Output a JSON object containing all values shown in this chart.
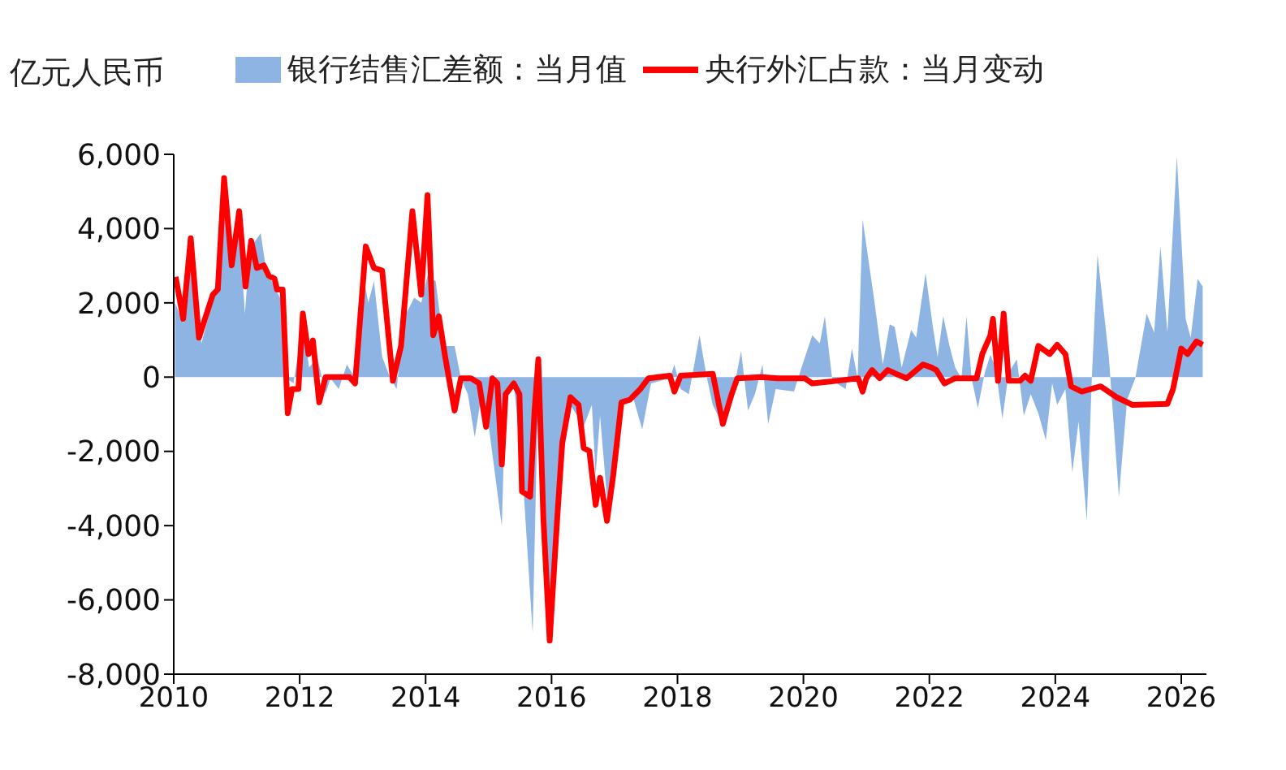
{
  "chart_data": {
    "type": "line",
    "ylabel": "亿元人民币",
    "legend": "top",
    "xlim": [
      2010,
      2026.4
    ],
    "xticks": [
      2010,
      2012,
      2014,
      2016,
      2018,
      2020,
      2022,
      2024,
      2026
    ],
    "ylim": [
      -8000,
      6000
    ],
    "yticks": [
      {
        "value": -8000,
        "label": "-8,000"
      },
      {
        "value": -6000,
        "label": "-6,000"
      },
      {
        "value": -4000,
        "label": "-4,000"
      },
      {
        "value": -2000,
        "label": "-2,000"
      },
      0,
      {
        "value": 2000,
        "label": "2,000"
      },
      {
        "value": 4000,
        "label": "4,000"
      },
      {
        "value": 6000,
        "label": "6,000"
      }
    ],
    "series": [
      {
        "name": "银行结售汇差额：当月值",
        "type": "area",
        "color": "#8eb4e3",
        "x": [
          2010.02,
          2010.15,
          2010.27,
          2010.44,
          2010.7,
          2010.8,
          2010.92,
          2011.04,
          2011.13,
          2011.21,
          2011.38,
          2011.47,
          2011.64,
          2011.73,
          2011.77,
          2011.9,
          2012.05,
          2012.15,
          2012.28,
          2012.41,
          2012.49,
          2012.62,
          2012.75,
          2012.88,
          2013.01,
          2013.09,
          2013.18,
          2013.31,
          2013.44,
          2013.54,
          2013.65,
          2013.82,
          2013.93,
          2014.03,
          2014.16,
          2014.29,
          2014.46,
          2014.56,
          2014.67,
          2014.78,
          2014.89,
          2014.97,
          2015.21,
          2015.27,
          2015.4,
          2015.53,
          2015.7,
          2015.79,
          2015.87,
          2015.97,
          2016.09,
          2016.17,
          2016.3,
          2016.51,
          2016.64,
          2016.7,
          2016.77,
          2016.9,
          2017.03,
          2017.15,
          2017.28,
          2017.44,
          2017.58,
          2017.88,
          2017.95,
          2018.05,
          2018.18,
          2018.35,
          2018.46,
          2018.56,
          2018.69,
          2018.86,
          2019.01,
          2019.12,
          2019.23,
          2019.35,
          2019.44,
          2019.56,
          2019.85,
          2019.97,
          2020.14,
          2020.26,
          2020.34,
          2020.46,
          2020.67,
          2020.77,
          2020.86,
          2020.94,
          2021.13,
          2021.26,
          2021.37,
          2021.45,
          2021.56,
          2021.71,
          2021.79,
          2021.94,
          2022.05,
          2022.13,
          2022.22,
          2022.32,
          2022.41,
          2022.51,
          2022.59,
          2022.67,
          2022.77,
          2022.88,
          2022.97,
          2023.05,
          2023.16,
          2023.26,
          2023.39,
          2023.5,
          2023.61,
          2023.73,
          2023.85,
          2023.95,
          2024.03,
          2024.16,
          2024.27,
          2024.37,
          2024.5,
          2024.58,
          2024.67,
          2024.85,
          2025.01,
          2025.14,
          2025.27,
          2025.45,
          2025.57,
          2025.67,
          2025.78,
          2025.93,
          2026.07,
          2026.15,
          2026.26,
          2026.34
        ],
        "values": [
          2000,
          1450,
          3450,
          910,
          2580,
          4470,
          2940,
          4030,
          1710,
          3450,
          3880,
          2870,
          2290,
          2000,
          0,
          -170,
          1420,
          260,
          550,
          -460,
          -30,
          -320,
          340,
          -30,
          2730,
          2000,
          2580,
          550,
          -30,
          -320,
          1570,
          2140,
          2000,
          2730,
          2580,
          840,
          840,
          -30,
          -460,
          -1620,
          -460,
          -900,
          -4020,
          -460,
          -170,
          -2350,
          -6900,
          -30,
          -3800,
          -6700,
          -3080,
          -2350,
          -750,
          -1330,
          -750,
          -2640,
          -1040,
          -3650,
          -1330,
          -610,
          -460,
          -1410,
          -170,
          -30,
          340,
          -320,
          -460,
          1130,
          40,
          -750,
          -1190,
          -610,
          700,
          -900,
          -460,
          340,
          -1260,
          -320,
          -390,
          260,
          1130,
          910,
          1640,
          -100,
          -320,
          770,
          -30,
          4250,
          2000,
          340,
          1420,
          1350,
          260,
          1270,
          1060,
          2800,
          1420,
          550,
          1640,
          840,
          260,
          -30,
          1640,
          -30,
          -830,
          120,
          600,
          260,
          -1120,
          120,
          480,
          -1040,
          -460,
          -970,
          -1700,
          -170,
          -750,
          -320,
          -2570,
          -1190,
          -3870,
          -30,
          3310,
          550,
          -3220,
          -610,
          -30,
          1710,
          1200,
          3520,
          1200,
          5950,
          1570,
          1060,
          2650,
          2440
        ]
      },
      {
        "name": "央行外汇占款：当月变动",
        "color": "#ff0000",
        "x": [
          2010.03,
          2010.15,
          2010.27,
          2010.4,
          2010.62,
          2010.7,
          2010.8,
          2010.92,
          2011.04,
          2011.14,
          2011.23,
          2011.32,
          2011.43,
          2011.51,
          2011.6,
          2011.64,
          2011.73,
          2011.81,
          2011.88,
          2011.98,
          2012.05,
          2012.14,
          2012.21,
          2012.31,
          2012.41,
          2012.79,
          2012.88,
          2013.05,
          2013.18,
          2013.31,
          2013.48,
          2013.61,
          2013.79,
          2013.93,
          2014.03,
          2014.12,
          2014.21,
          2014.31,
          2014.46,
          2014.56,
          2014.72,
          2014.85,
          2014.96,
          2015.06,
          2015.14,
          2015.21,
          2015.27,
          2015.4,
          2015.49,
          2015.53,
          2015.66,
          2015.73,
          2015.79,
          2015.87,
          2015.97,
          2016.09,
          2016.17,
          2016.3,
          2016.43,
          2016.51,
          2016.6,
          2016.7,
          2016.77,
          2016.88,
          2016.98,
          2017.11,
          2017.24,
          2017.41,
          2017.54,
          2017.88,
          2017.95,
          2018.05,
          2018.56,
          2018.72,
          2018.86,
          2018.95,
          2019.33,
          2019.59,
          2020.02,
          2020.14,
          2020.53,
          2020.87,
          2020.94,
          2021.0,
          2021.09,
          2021.21,
          2021.34,
          2021.47,
          2021.64,
          2021.9,
          2022.03,
          2022.11,
          2022.24,
          2022.41,
          2022.75,
          2022.84,
          2022.97,
          2023.01,
          2023.09,
          2023.18,
          2023.26,
          2023.44,
          2023.52,
          2023.61,
          2023.73,
          2023.91,
          2024.03,
          2024.16,
          2024.25,
          2024.42,
          2024.72,
          2024.97,
          2025.23,
          2025.78,
          2025.87,
          2026.0,
          2026.1,
          2026.24,
          2026.34
        ],
        "values": [
          2700,
          1570,
          3740,
          1060,
          2220,
          2360,
          5360,
          3010,
          4470,
          2440,
          3670,
          2940,
          3010,
          2730,
          2650,
          2360,
          2360,
          -970,
          -320,
          -320,
          1710,
          620,
          990,
          -680,
          0,
          0,
          -170,
          3520,
          2940,
          2870,
          -100,
          840,
          4470,
          2220,
          4900,
          1130,
          1640,
          550,
          -900,
          -30,
          -30,
          -170,
          -1340,
          -30,
          -170,
          -2350,
          -460,
          -170,
          -460,
          -3080,
          -3220,
          -900,
          480,
          -3800,
          -7100,
          -3800,
          -1770,
          -540,
          -750,
          -1910,
          -1990,
          -3440,
          -2710,
          -3870,
          -2640,
          -680,
          -610,
          -320,
          -30,
          40,
          -390,
          40,
          90,
          -1260,
          -460,
          -30,
          0,
          -30,
          -30,
          -170,
          -100,
          -30,
          -390,
          -30,
          190,
          -30,
          190,
          90,
          -30,
          340,
          260,
          190,
          -170,
          -30,
          -30,
          620,
          1130,
          1570,
          -100,
          1710,
          -100,
          -100,
          40,
          -100,
          840,
          620,
          870,
          620,
          -250,
          -390,
          -250,
          -540,
          -750,
          -720,
          -320,
          770,
          620,
          960,
          870
        ]
      }
    ]
  }
}
